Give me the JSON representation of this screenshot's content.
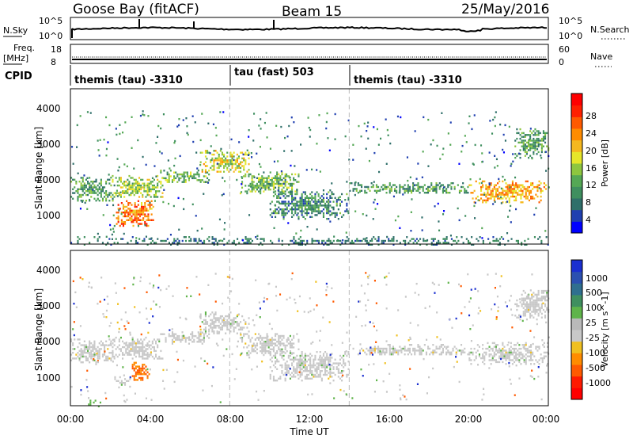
{
  "header": {
    "station": "Goose Bay (fitACF)",
    "beam": "Beam 15",
    "date": "25/May/2016"
  },
  "noise_panel": {
    "left_label": "N.Sky",
    "left_ticks": [
      "10^5",
      "10^0"
    ],
    "right_label": "N.Search",
    "right_ticks": [
      "10^5",
      "10^0"
    ]
  },
  "freq_panel": {
    "left_label_1": "Freq.",
    "left_label_2": "[MHz]",
    "left_ticks": [
      "18",
      "8"
    ],
    "right_label": "Nave",
    "right_ticks": [
      "60",
      "0"
    ]
  },
  "cpid": {
    "label": "CPID",
    "segments": [
      {
        "start_hour": 0,
        "end_hour": 8,
        "text": "themis (tau) -3310"
      },
      {
        "start_hour": 8,
        "end_hour": 14,
        "text": "tau (fast) 503"
      },
      {
        "start_hour": 14,
        "end_hour": 24,
        "text": "themis (tau) -3310"
      }
    ]
  },
  "power_panel": {
    "ylabel": "Slant Range [km]",
    "yticks": [
      "1000",
      "2000",
      "3000",
      "4000"
    ],
    "colorbar_label": "Power [dB]",
    "colorbar_ticks": [
      "4",
      "8",
      "12",
      "16",
      "20",
      "24",
      "28"
    ],
    "colorbar_colors": [
      "#0000ff",
      "#1f3fb0",
      "#2f6f6a",
      "#3f8f5f",
      "#55a855",
      "#8ec63f",
      "#e6e62a",
      "#f5b81f",
      "#ff8c00",
      "#ff5a00",
      "#ff2000",
      "#ff0000"
    ]
  },
  "velocity_panel": {
    "ylabel": "Slant Range [km]",
    "yticks": [
      "1000",
      "2000",
      "3000",
      "4000"
    ],
    "colorbar_label": "Velocity [m s^-1]",
    "colorbar_ticks": [
      "1000",
      "500",
      "100",
      "25",
      "-25",
      "-100",
      "-500",
      "-1000"
    ],
    "colorbar_colors": [
      "#1a2fd0",
      "#2b50b0",
      "#2f6f8f",
      "#3f8f5f",
      "#5fb44a",
      "#b9b9b9",
      "#c8c8c8",
      "#f0c020",
      "#ff8c00",
      "#ff5a00",
      "#ff1a00",
      "#ff0000"
    ]
  },
  "x_axis": {
    "label": "Time UT",
    "ticks": [
      "00:00",
      "04:00",
      "08:00",
      "12:00",
      "16:00",
      "20:00",
      "00:00"
    ]
  },
  "chart_data": [
    {
      "type": "heatmap",
      "title": "Goose Bay (fitACF)",
      "quantity": "Power [dB]",
      "xlabel": "Time UT",
      "ylabel": "Slant Range [km]",
      "xlim": [
        0,
        24
      ],
      "ylim": [
        180,
        4500
      ],
      "color_range": [
        0,
        30
      ],
      "echo_regions": [
        {
          "t0": 0.0,
          "t1": 2.2,
          "r0": 1400,
          "r1": 2050,
          "value": 10
        },
        {
          "t0": 2.0,
          "t1": 4.6,
          "r0": 1500,
          "r1": 2100,
          "value": 14
        },
        {
          "t0": 2.2,
          "t1": 4.2,
          "r0": 700,
          "r1": 1400,
          "value": 22
        },
        {
          "t0": 4.5,
          "t1": 7.0,
          "r0": 1900,
          "r1": 2250,
          "value": 12
        },
        {
          "t0": 6.5,
          "t1": 9.0,
          "r0": 2200,
          "r1": 2800,
          "value": 16
        },
        {
          "t0": 8.5,
          "t1": 11.5,
          "r0": 1600,
          "r1": 2200,
          "value": 12
        },
        {
          "t0": 10.0,
          "t1": 14.0,
          "r0": 900,
          "r1": 1700,
          "value": 8
        },
        {
          "t0": 14.0,
          "t1": 20.0,
          "r0": 1600,
          "r1": 1900,
          "value": 10
        },
        {
          "t0": 20.0,
          "t1": 24.0,
          "r0": 1350,
          "r1": 1950,
          "value": 20
        },
        {
          "t0": 22.3,
          "t1": 24.0,
          "r0": 2600,
          "r1": 3400,
          "value": 10
        },
        {
          "t0": 0.0,
          "t1": 24.0,
          "r0": 180,
          "r1": 400,
          "value": 8
        }
      ]
    },
    {
      "type": "heatmap",
      "quantity": "Velocity [m s^-1]",
      "xlabel": "Time UT",
      "ylabel": "Slant Range [km]",
      "xlim": [
        0,
        24
      ],
      "ylim": [
        180,
        4500
      ],
      "color_range": [
        -1000,
        1000
      ],
      "echo_regions": [
        {
          "t0": 0.0,
          "t1": 2.2,
          "r0": 1400,
          "r1": 2050,
          "value": 0
        },
        {
          "t0": 2.0,
          "t1": 4.6,
          "r0": 1500,
          "r1": 2100,
          "value": 0
        },
        {
          "t0": 3.0,
          "t1": 4.0,
          "r0": 900,
          "r1": 1400,
          "value": -300
        },
        {
          "t0": 2.2,
          "t1": 3.0,
          "r0": 700,
          "r1": 1000,
          "value": 0
        },
        {
          "t0": 0.8,
          "t1": 1.5,
          "r0": 180,
          "r1": 400,
          "value": 200
        },
        {
          "t0": 4.5,
          "t1": 7.0,
          "r0": 1900,
          "r1": 2250,
          "value": 0
        },
        {
          "t0": 6.5,
          "t1": 9.0,
          "r0": 2200,
          "r1": 2800,
          "value": 0
        },
        {
          "t0": 8.5,
          "t1": 11.5,
          "r0": 1600,
          "r1": 2200,
          "value": 0
        },
        {
          "t0": 10.0,
          "t1": 14.0,
          "r0": 900,
          "r1": 1700,
          "value": 0
        },
        {
          "t0": 14.0,
          "t1": 20.0,
          "r0": 1600,
          "r1": 1900,
          "value": 0
        },
        {
          "t0": 20.0,
          "t1": 24.0,
          "r0": 1350,
          "r1": 1950,
          "value": 0
        },
        {
          "t0": 22.3,
          "t1": 24.0,
          "r0": 2600,
          "r1": 3400,
          "value": 0
        }
      ]
    }
  ]
}
